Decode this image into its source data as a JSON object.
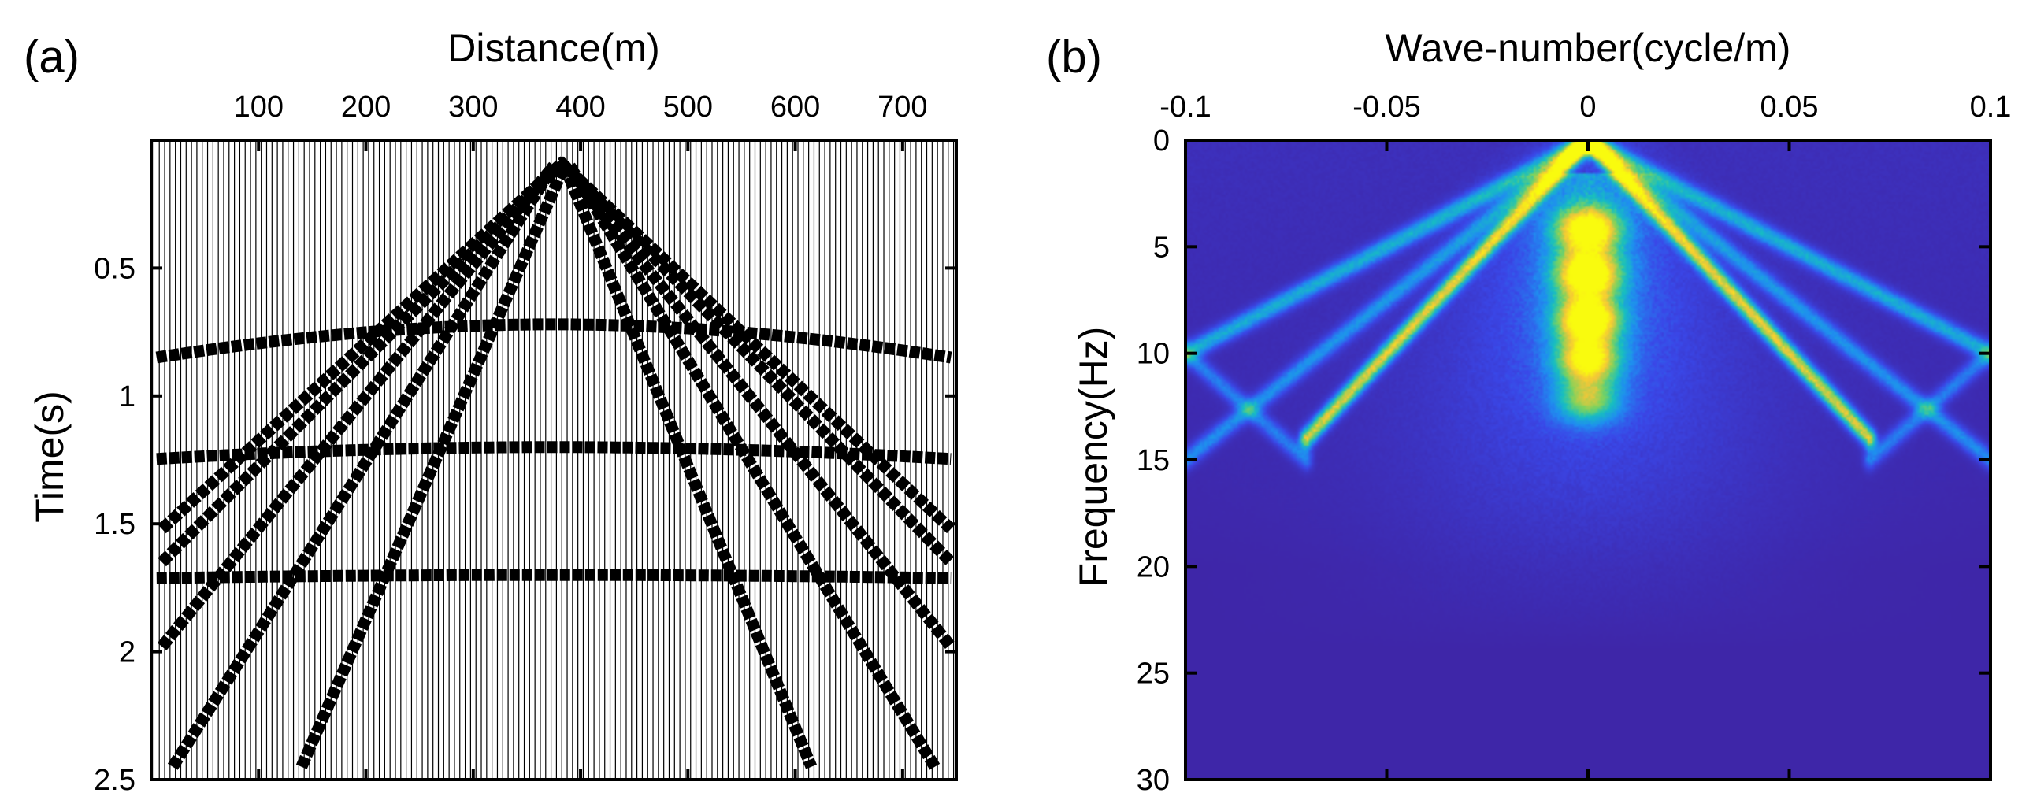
{
  "chart_data": [
    {
      "type": "seismic-wiggle",
      "panel_label": "(a)",
      "xlabel": "Distance(m)",
      "ylabel": "Time(s)",
      "xlim": [
        0,
        750
      ],
      "ylim": [
        2.5,
        0
      ],
      "xticks": [
        100,
        200,
        300,
        400,
        500,
        600,
        700
      ],
      "xtick_labels": [
        "100",
        "200",
        "300",
        "400",
        "500",
        "600",
        "700"
      ],
      "yticks": [
        0.5,
        1,
        1.5,
        2,
        2.5
      ],
      "ytick_labels": [
        "0.5",
        "1",
        "1.5",
        "2",
        "2.5"
      ],
      "x_axis_location": "top",
      "trace_count": 150,
      "events": [
        {
          "name": "linear-event-1",
          "kind": "linear",
          "x": [
            10,
            385
          ],
          "t": [
            1.52,
            0.08
          ]
        },
        {
          "name": "linear-event-2",
          "kind": "linear",
          "x": [
            10,
            380
          ],
          "t": [
            1.65,
            0.1
          ]
        },
        {
          "name": "linear-event-3",
          "kind": "linear",
          "x": [
            10,
            375
          ],
          "t": [
            1.98,
            0.1
          ]
        },
        {
          "name": "linear-event-4",
          "kind": "linear",
          "x": [
            20,
            375
          ],
          "t": [
            2.45,
            0.1
          ]
        },
        {
          "name": "linear-event-5",
          "kind": "linear",
          "x": [
            140,
            385
          ],
          "t": [
            2.45,
            0.1
          ]
        },
        {
          "name": "linear-event-6",
          "kind": "linear",
          "x": [
            380,
            745
          ],
          "t": [
            0.08,
            1.52
          ]
        },
        {
          "name": "linear-event-7",
          "kind": "linear",
          "x": [
            385,
            745
          ],
          "t": [
            0.1,
            1.65
          ]
        },
        {
          "name": "linear-event-8",
          "kind": "linear",
          "x": [
            385,
            745
          ],
          "t": [
            0.1,
            1.98
          ]
        },
        {
          "name": "linear-event-9",
          "kind": "linear",
          "x": [
            390,
            730
          ],
          "t": [
            0.1,
            2.45
          ]
        },
        {
          "name": "linear-event-10",
          "kind": "linear",
          "x": [
            385,
            615
          ],
          "t": [
            0.1,
            2.45
          ]
        },
        {
          "name": "hyperbola-1",
          "kind": "hyperbolic",
          "apex_x": 375,
          "t0": 0.72,
          "velocity": 820
        },
        {
          "name": "hyperbola-2",
          "kind": "hyperbolic",
          "apex_x": 375,
          "t0": 1.2,
          "velocity": 1100
        },
        {
          "name": "hyperbola-3",
          "kind": "hyperbolic",
          "apex_x": 375,
          "t0": 1.7,
          "velocity": 1800
        }
      ]
    },
    {
      "type": "heatmap",
      "panel_label": "(b)",
      "xlabel": "Wave-number(cycle/m)",
      "ylabel": "Frequency(Hz)",
      "xlim": [
        -0.1,
        0.1
      ],
      "ylim": [
        30,
        0
      ],
      "xticks": [
        -0.1,
        -0.05,
        0,
        0.05,
        0.1
      ],
      "xtick_labels": [
        "-0.1",
        "-0.05",
        "0",
        "0.05",
        "0.1"
      ],
      "yticks": [
        0,
        5,
        10,
        15,
        20,
        25,
        30
      ],
      "ytick_labels": [
        "0",
        "5",
        "10",
        "15",
        "20",
        "25",
        "30"
      ],
      "x_axis_location": "top",
      "colormap": [
        "#3e26a8",
        "#3a47e8",
        "#1f8ef0",
        "#17bfc0",
        "#7dd35e",
        "#f5c737",
        "#f9fb0e"
      ],
      "background_value": 0.0,
      "energy_lines": [
        {
          "name": "fk-line-1",
          "k": [
            0,
            -0.1
          ],
          "f": [
            0,
            10
          ],
          "amplitude": 0.45
        },
        {
          "name": "fk-line-2",
          "k": [
            0,
            0.1
          ],
          "f": [
            0,
            10
          ],
          "amplitude": 0.45
        },
        {
          "name": "fk-line-3",
          "k": [
            0,
            -0.1
          ],
          "f": [
            0,
            15
          ],
          "amplitude": 0.35
        },
        {
          "name": "fk-line-4",
          "k": [
            0,
            0.1
          ],
          "f": [
            0,
            15
          ],
          "amplitude": 0.35
        },
        {
          "name": "fk-line-5",
          "k": [
            0,
            -0.07
          ],
          "f": [
            0,
            14
          ],
          "amplitude": 0.85
        },
        {
          "name": "fk-line-6",
          "k": [
            0,
            0.07
          ],
          "f": [
            0,
            14
          ],
          "amplitude": 0.85
        },
        {
          "name": "fk-line-7",
          "k": [
            -0.1,
            -0.07
          ],
          "f": [
            10,
            15
          ],
          "amplitude": 0.3
        },
        {
          "name": "fk-line-8",
          "k": [
            0.1,
            0.07
          ],
          "f": [
            10,
            15
          ],
          "amplitude": 0.3
        }
      ],
      "central_blobs": [
        {
          "f": 4.2,
          "amplitude": 0.9
        },
        {
          "f": 6.3,
          "amplitude": 1.0
        },
        {
          "f": 8.4,
          "amplitude": 1.0
        },
        {
          "f": 10.3,
          "amplitude": 0.85
        },
        {
          "f": 12.2,
          "amplitude": 0.55
        }
      ]
    }
  ]
}
